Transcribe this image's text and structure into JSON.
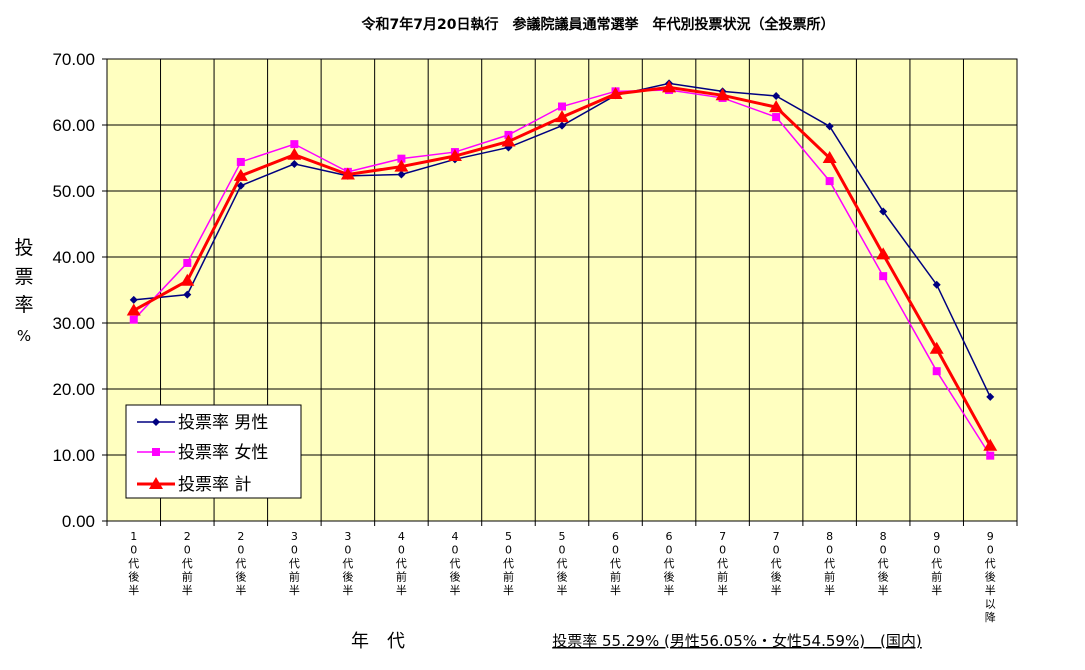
{
  "chart_data": {
    "type": "line",
    "title": "令和7年7月20日執行　参議院議員通常選挙　年代別投票状況（全投票所）",
    "ylabel_lines": [
      "投",
      "票",
      "率",
      "%"
    ],
    "xlabel": "年　代",
    "summary": "投票率 55.29% (男性56.05%・女性54.59%)　(国内)",
    "ylim": [
      0,
      70
    ],
    "yticks": [
      "0.00",
      "10.00",
      "20.00",
      "30.00",
      "40.00",
      "50.00",
      "60.00",
      "70.00"
    ],
    "grid": true,
    "legend_position": "bottom-left",
    "categories": [
      [
        "1",
        "0",
        "代",
        "後",
        "半"
      ],
      [
        "2",
        "0",
        "代",
        "前",
        "半"
      ],
      [
        "2",
        "0",
        "代",
        "後",
        "半"
      ],
      [
        "3",
        "0",
        "代",
        "前",
        "半"
      ],
      [
        "3",
        "0",
        "代",
        "後",
        "半"
      ],
      [
        "4",
        "0",
        "代",
        "前",
        "半"
      ],
      [
        "4",
        "0",
        "代",
        "後",
        "半"
      ],
      [
        "5",
        "0",
        "代",
        "前",
        "半"
      ],
      [
        "5",
        "0",
        "代",
        "後",
        "半"
      ],
      [
        "6",
        "0",
        "代",
        "前",
        "半"
      ],
      [
        "6",
        "0",
        "代",
        "後",
        "半"
      ],
      [
        "7",
        "0",
        "代",
        "前",
        "半"
      ],
      [
        "7",
        "0",
        "代",
        "後",
        "半"
      ],
      [
        "8",
        "0",
        "代",
        "前",
        "半"
      ],
      [
        "8",
        "0",
        "代",
        "後",
        "半"
      ],
      [
        "9",
        "0",
        "代",
        "前",
        "半"
      ],
      [
        "9",
        "0",
        "代",
        "後",
        "半",
        "以",
        "降"
      ]
    ],
    "series": [
      {
        "name": "投票率 男性",
        "color": "#000080",
        "marker": "diamond",
        "values": [
          33.5,
          34.3,
          50.8,
          54.1,
          52.3,
          52.5,
          54.8,
          56.6,
          59.9,
          64.5,
          66.3,
          65.1,
          64.4,
          59.8,
          46.9,
          35.8,
          18.8
        ]
      },
      {
        "name": "投票率 女性",
        "color": "#ff00ff",
        "marker": "square",
        "values": [
          30.5,
          39.1,
          54.4,
          57.1,
          52.9,
          54.9,
          55.9,
          58.5,
          62.8,
          65.1,
          65.3,
          64.1,
          61.2,
          51.5,
          37.1,
          22.7,
          9.9
        ]
      },
      {
        "name": "投票率 計",
        "color": "#ff0000",
        "marker": "triangle",
        "values": [
          31.9,
          36.4,
          52.3,
          55.5,
          52.5,
          53.7,
          55.3,
          57.5,
          61.2,
          64.7,
          65.7,
          64.5,
          62.7,
          55.0,
          40.4,
          26.1,
          11.4
        ]
      }
    ],
    "colors": {
      "plot_bg": "#ffffc0",
      "grid": "#000000"
    }
  }
}
